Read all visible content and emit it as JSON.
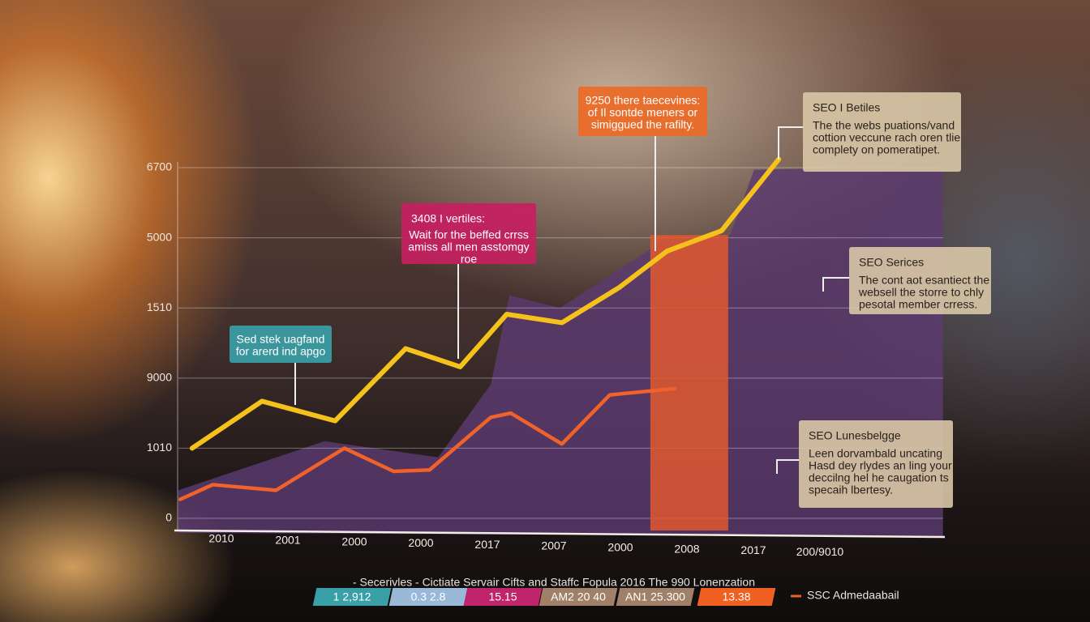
{
  "chart_data": {
    "type": "line",
    "categories": [
      "2010",
      "2001",
      "2000",
      "2000",
      "2017",
      "2007",
      "2000",
      "2008",
      "2017",
      "200/9010"
    ],
    "xlim": [
      -0.7,
      10.9
    ],
    "ylim": [
      0,
      5.4
    ],
    "yticks": [
      {
        "value": 0,
        "label": "0"
      },
      {
        "value": 1,
        "label": "1010"
      },
      {
        "value": 2,
        "label": "9000"
      },
      {
        "value": 3,
        "label": "1510"
      },
      {
        "value": 4,
        "label": "5000"
      },
      {
        "value": 5,
        "label": "6700"
      }
    ],
    "grid": true,
    "series": [
      {
        "color": "#f5c21b",
        "x": [
          -0.44,
          0.61,
          1.71,
          2.77,
          3.59,
          4.29,
          5.12,
          5.98,
          6.7,
          7.52,
          8.38
        ],
        "values": [
          1.0,
          1.67,
          1.39,
          2.42,
          2.16,
          2.91,
          2.79,
          3.29,
          3.81,
          4.1,
          5.12
        ]
      },
      {
        "color": "#f0622a",
        "x": [
          -0.62,
          -0.13,
          0.82,
          1.85,
          2.59,
          3.13,
          4.05,
          4.35,
          5.12,
          5.84,
          6.82
        ],
        "values": [
          0.27,
          0.48,
          0.4,
          1.0,
          0.67,
          0.69,
          1.44,
          1.5,
          1.06,
          1.76,
          1.85
        ]
      }
    ],
    "area": {
      "color": "#5b3a70",
      "x": [
        -0.65,
        1.55,
        3.26,
        4.05,
        4.33,
        5.09,
        6.18,
        6.67,
        7.65,
        8.01,
        10.85
      ],
      "values": [
        0.4,
        1.1,
        0.87,
        1.91,
        3.18,
        3.0,
        3.67,
        3.98,
        4.04,
        4.97,
        5.02
      ]
    },
    "highlight": {
      "color": "#e0582f",
      "x": [
        6.45,
        7.62
      ],
      "value": 4.04
    },
    "annotations": [
      {
        "color": "#3a9fa6",
        "lines": [
          "Sed stek uagfand",
          "for arerd ind apgo"
        ]
      },
      {
        "color": "#c6205f",
        "title": "3408 I vertiles:",
        "lines": [
          "Wait for the beffed crrss",
          "amiss all men asstomgy",
          "roe"
        ]
      },
      {
        "color": "#ec6a25",
        "lines": [
          "9250 there taecevines:",
          "of Il sontde meners or",
          "simiggued the rafilty."
        ]
      },
      {
        "color": "#d8c7a6",
        "title": "SEO I Betiles",
        "lines": [
          "The the webs puations/vand",
          "cottion veccune rach oren tlie",
          "complety on pomeratipet."
        ]
      },
      {
        "color": "#d8c7a6",
        "title": "SEO Serices",
        "lines": [
          "The cont aot esantiect the",
          "websell the storre to chly",
          "pesotal member crress."
        ]
      },
      {
        "color": "#d8c7a6",
        "title": "SEO Lunesbelgge",
        "lines": [
          "Leen dorvambald uncating",
          "Hasd dey rlydes an ling your",
          "deccilng hel he caugation ts",
          "specaih lbertesy."
        ]
      }
    ],
    "caption": "- Secerivles - Cictiate Servair Cifts and Staffc Fopula 2016 The 990 Lonenzation",
    "legend": [
      {
        "label": "1 2,912",
        "color": "#3aa0a8"
      },
      {
        "label": "0.3 2.8",
        "color": "#9ab8d8"
      },
      {
        "label": "15.15",
        "color": "#c0246a"
      },
      {
        "label": "AM2 20 40",
        "color": "#a08068"
      },
      {
        "label": "AN1 25.300",
        "color": "#a08068"
      },
      {
        "label": "13.38",
        "color": "#f06020"
      },
      {
        "label": "SSC Admedaabail",
        "color": "#f06020"
      }
    ]
  }
}
